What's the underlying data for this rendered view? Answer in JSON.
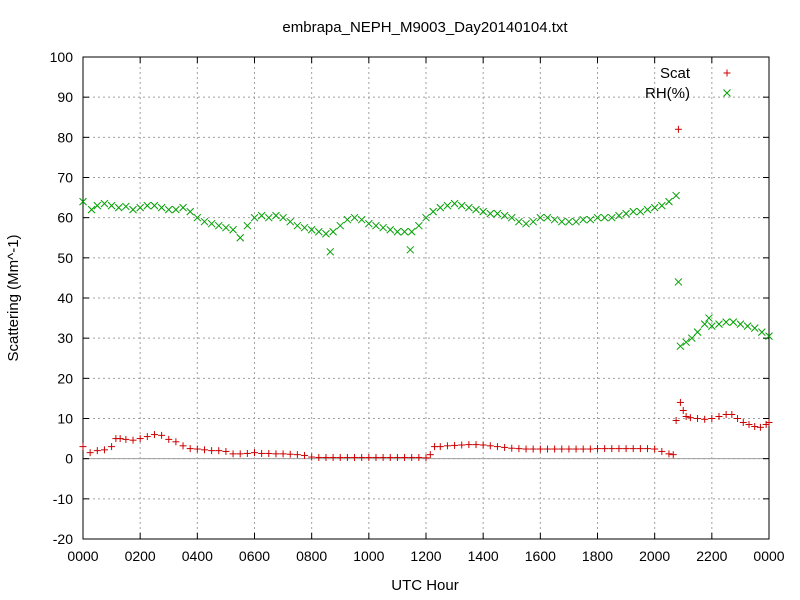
{
  "chart_data": {
    "type": "scatter",
    "title": "embrapa_NEPH_M9003_Day20140104.txt",
    "xlabel": "UTC Hour",
    "ylabel": "Scattering (Mm^-1)",
    "xlim": [
      0,
      2400
    ],
    "ylim": [
      -20,
      100
    ],
    "x_tick_labels": [
      "0000",
      "0200",
      "0400",
      "0600",
      "0800",
      "1000",
      "1200",
      "1400",
      "1600",
      "1800",
      "2000",
      "2200",
      "0000"
    ],
    "y_ticks": [
      -20,
      -10,
      0,
      10,
      20,
      30,
      40,
      50,
      60,
      70,
      80,
      90,
      100
    ],
    "grid": true,
    "zero_line": true,
    "legend_position": "top-right",
    "series": [
      {
        "name": "Scat",
        "marker": "plus",
        "color": "#cc0000",
        "points": [
          [
            0,
            3
          ],
          [
            25,
            1.5
          ],
          [
            50,
            2
          ],
          [
            75,
            2.2
          ],
          [
            100,
            3
          ],
          [
            115,
            5
          ],
          [
            130,
            5
          ],
          [
            150,
            4.8
          ],
          [
            175,
            4.6
          ],
          [
            200,
            5
          ],
          [
            225,
            5.5
          ],
          [
            250,
            6
          ],
          [
            275,
            5.8
          ],
          [
            300,
            4.8
          ],
          [
            325,
            4.2
          ],
          [
            350,
            3.2
          ],
          [
            375,
            2.5
          ],
          [
            400,
            2.4
          ],
          [
            425,
            2.2
          ],
          [
            450,
            2
          ],
          [
            475,
            2
          ],
          [
            500,
            1.8
          ],
          [
            525,
            1.2
          ],
          [
            550,
            1.2
          ],
          [
            575,
            1.3
          ],
          [
            600,
            1.5
          ],
          [
            625,
            1.3
          ],
          [
            650,
            1.3
          ],
          [
            675,
            1.2
          ],
          [
            700,
            1.2
          ],
          [
            725,
            1.1
          ],
          [
            750,
            1
          ],
          [
            775,
            0.8
          ],
          [
            800,
            0.4
          ],
          [
            825,
            0.3
          ],
          [
            850,
            0.3
          ],
          [
            875,
            0.3
          ],
          [
            900,
            0.3
          ],
          [
            925,
            0.3
          ],
          [
            950,
            0.3
          ],
          [
            975,
            0.3
          ],
          [
            1000,
            0.3
          ],
          [
            1025,
            0.3
          ],
          [
            1050,
            0.3
          ],
          [
            1075,
            0.3
          ],
          [
            1100,
            0.3
          ],
          [
            1125,
            0.3
          ],
          [
            1150,
            0.3
          ],
          [
            1175,
            0.3
          ],
          [
            1200,
            0.2
          ],
          [
            1215,
            1
          ],
          [
            1230,
            3
          ],
          [
            1250,
            3
          ],
          [
            1275,
            3.2
          ],
          [
            1300,
            3.3
          ],
          [
            1325,
            3.4
          ],
          [
            1350,
            3.5
          ],
          [
            1375,
            3.5
          ],
          [
            1400,
            3.4
          ],
          [
            1425,
            3.2
          ],
          [
            1450,
            3
          ],
          [
            1475,
            2.8
          ],
          [
            1500,
            2.6
          ],
          [
            1525,
            2.5
          ],
          [
            1550,
            2.4
          ],
          [
            1575,
            2.4
          ],
          [
            1600,
            2.4
          ],
          [
            1625,
            2.4
          ],
          [
            1650,
            2.4
          ],
          [
            1675,
            2.4
          ],
          [
            1700,
            2.4
          ],
          [
            1725,
            2.4
          ],
          [
            1750,
            2.4
          ],
          [
            1775,
            2.4
          ],
          [
            1800,
            2.5
          ],
          [
            1825,
            2.5
          ],
          [
            1850,
            2.5
          ],
          [
            1875,
            2.5
          ],
          [
            1900,
            2.5
          ],
          [
            1925,
            2.5
          ],
          [
            1950,
            2.5
          ],
          [
            1975,
            2.5
          ],
          [
            2000,
            2.4
          ],
          [
            2025,
            1.8
          ],
          [
            2050,
            1.2
          ],
          [
            2065,
            1
          ],
          [
            2075,
            9.5
          ],
          [
            2083,
            82
          ],
          [
            2090,
            14
          ],
          [
            2100,
            12
          ],
          [
            2110,
            10.5
          ],
          [
            2125,
            10.2
          ],
          [
            2150,
            10
          ],
          [
            2175,
            9.8
          ],
          [
            2200,
            10
          ],
          [
            2225,
            10.5
          ],
          [
            2250,
            11
          ],
          [
            2270,
            11
          ],
          [
            2290,
            10
          ],
          [
            2310,
            9
          ],
          [
            2330,
            8.5
          ],
          [
            2350,
            8
          ],
          [
            2370,
            7.8
          ],
          [
            2390,
            8.5
          ],
          [
            2400,
            9
          ]
        ]
      },
      {
        "name": "RH(%)",
        "marker": "cross",
        "color": "#00a000",
        "points": [
          [
            0,
            64
          ],
          [
            30,
            62
          ],
          [
            50,
            63
          ],
          [
            75,
            63.5
          ],
          [
            100,
            63
          ],
          [
            125,
            62.5
          ],
          [
            150,
            62.8
          ],
          [
            175,
            62
          ],
          [
            200,
            62.5
          ],
          [
            225,
            63
          ],
          [
            250,
            63
          ],
          [
            275,
            62.5
          ],
          [
            300,
            62
          ],
          [
            325,
            62
          ],
          [
            350,
            62.5
          ],
          [
            375,
            61.5
          ],
          [
            400,
            60
          ],
          [
            425,
            59
          ],
          [
            450,
            58.5
          ],
          [
            475,
            58
          ],
          [
            500,
            57.5
          ],
          [
            525,
            57
          ],
          [
            550,
            55
          ],
          [
            575,
            58
          ],
          [
            600,
            60
          ],
          [
            625,
            60.5
          ],
          [
            650,
            60
          ],
          [
            675,
            60.5
          ],
          [
            700,
            60
          ],
          [
            725,
            59
          ],
          [
            750,
            58
          ],
          [
            775,
            57.5
          ],
          [
            800,
            57
          ],
          [
            825,
            56.5
          ],
          [
            850,
            56
          ],
          [
            865,
            51.5
          ],
          [
            875,
            56.5
          ],
          [
            900,
            58
          ],
          [
            925,
            59.5
          ],
          [
            950,
            60
          ],
          [
            975,
            59.5
          ],
          [
            1000,
            58.5
          ],
          [
            1025,
            58
          ],
          [
            1050,
            57.5
          ],
          [
            1075,
            57
          ],
          [
            1100,
            56.5
          ],
          [
            1125,
            56.5
          ],
          [
            1145,
            52
          ],
          [
            1150,
            56.5
          ],
          [
            1175,
            58
          ],
          [
            1200,
            60
          ],
          [
            1225,
            61.5
          ],
          [
            1250,
            62.5
          ],
          [
            1275,
            63
          ],
          [
            1300,
            63.5
          ],
          [
            1325,
            63
          ],
          [
            1350,
            62.5
          ],
          [
            1375,
            62
          ],
          [
            1400,
            61.5
          ],
          [
            1425,
            61
          ],
          [
            1450,
            61
          ],
          [
            1475,
            60.5
          ],
          [
            1500,
            60
          ],
          [
            1525,
            59
          ],
          [
            1550,
            58.5
          ],
          [
            1575,
            59
          ],
          [
            1600,
            60
          ],
          [
            1625,
            60
          ],
          [
            1650,
            59.5
          ],
          [
            1675,
            59
          ],
          [
            1700,
            59
          ],
          [
            1725,
            59
          ],
          [
            1750,
            59.5
          ],
          [
            1775,
            59.5
          ],
          [
            1800,
            60
          ],
          [
            1825,
            60
          ],
          [
            1850,
            60
          ],
          [
            1875,
            60.5
          ],
          [
            1900,
            61
          ],
          [
            1925,
            61.5
          ],
          [
            1950,
            61.5
          ],
          [
            1975,
            62
          ],
          [
            2000,
            62.5
          ],
          [
            2025,
            63
          ],
          [
            2050,
            64
          ],
          [
            2075,
            65.5
          ],
          [
            2083,
            44
          ],
          [
            2090,
            28
          ],
          [
            2110,
            29
          ],
          [
            2130,
            30
          ],
          [
            2150,
            31.5
          ],
          [
            2175,
            33.5
          ],
          [
            2190,
            35
          ],
          [
            2200,
            33
          ],
          [
            2225,
            33.5
          ],
          [
            2250,
            34
          ],
          [
            2275,
            34
          ],
          [
            2300,
            33.5
          ],
          [
            2325,
            33
          ],
          [
            2350,
            32.5
          ],
          [
            2375,
            31.5
          ],
          [
            2400,
            30.5
          ]
        ]
      }
    ]
  }
}
